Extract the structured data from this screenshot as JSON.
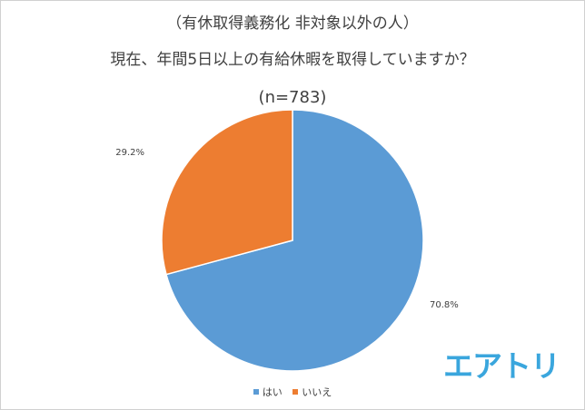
{
  "title_lines": [
    "（有休取得義務化 非対象以外の人）",
    "現在、年間5日以上の有給休暇を取得していますか？",
    "(n=783)"
  ],
  "chart_data": {
    "type": "pie",
    "categories": [
      "はい",
      "いいえ"
    ],
    "values": [
      70.8,
      29.2
    ],
    "data_labels": [
      "70.8%",
      "29.2%"
    ],
    "colors": [
      "#5b9bd5",
      "#ed7d31"
    ],
    "legend_position": "bottom"
  },
  "logo_text": "エアトリ",
  "logo_color": "#3aa6dd"
}
